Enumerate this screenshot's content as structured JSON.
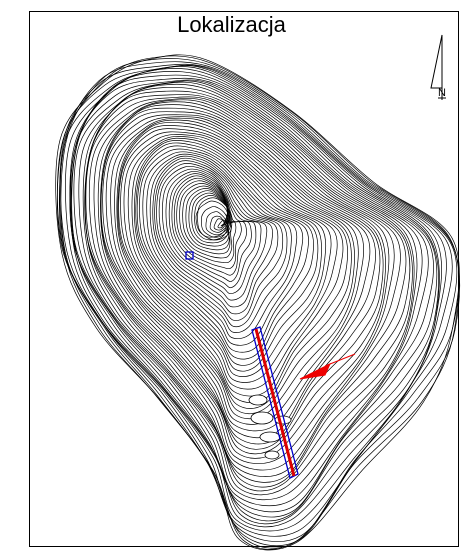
{
  "map": {
    "title": "Lokalizacja",
    "north_label": "N",
    "colors": {
      "contour": "#000000",
      "profile_line": "#dd0000",
      "outline": "#0000cc",
      "arrow": "#ee0000"
    },
    "icons": [
      "north-arrow-icon",
      "view-direction-arrow-icon"
    ]
  }
}
